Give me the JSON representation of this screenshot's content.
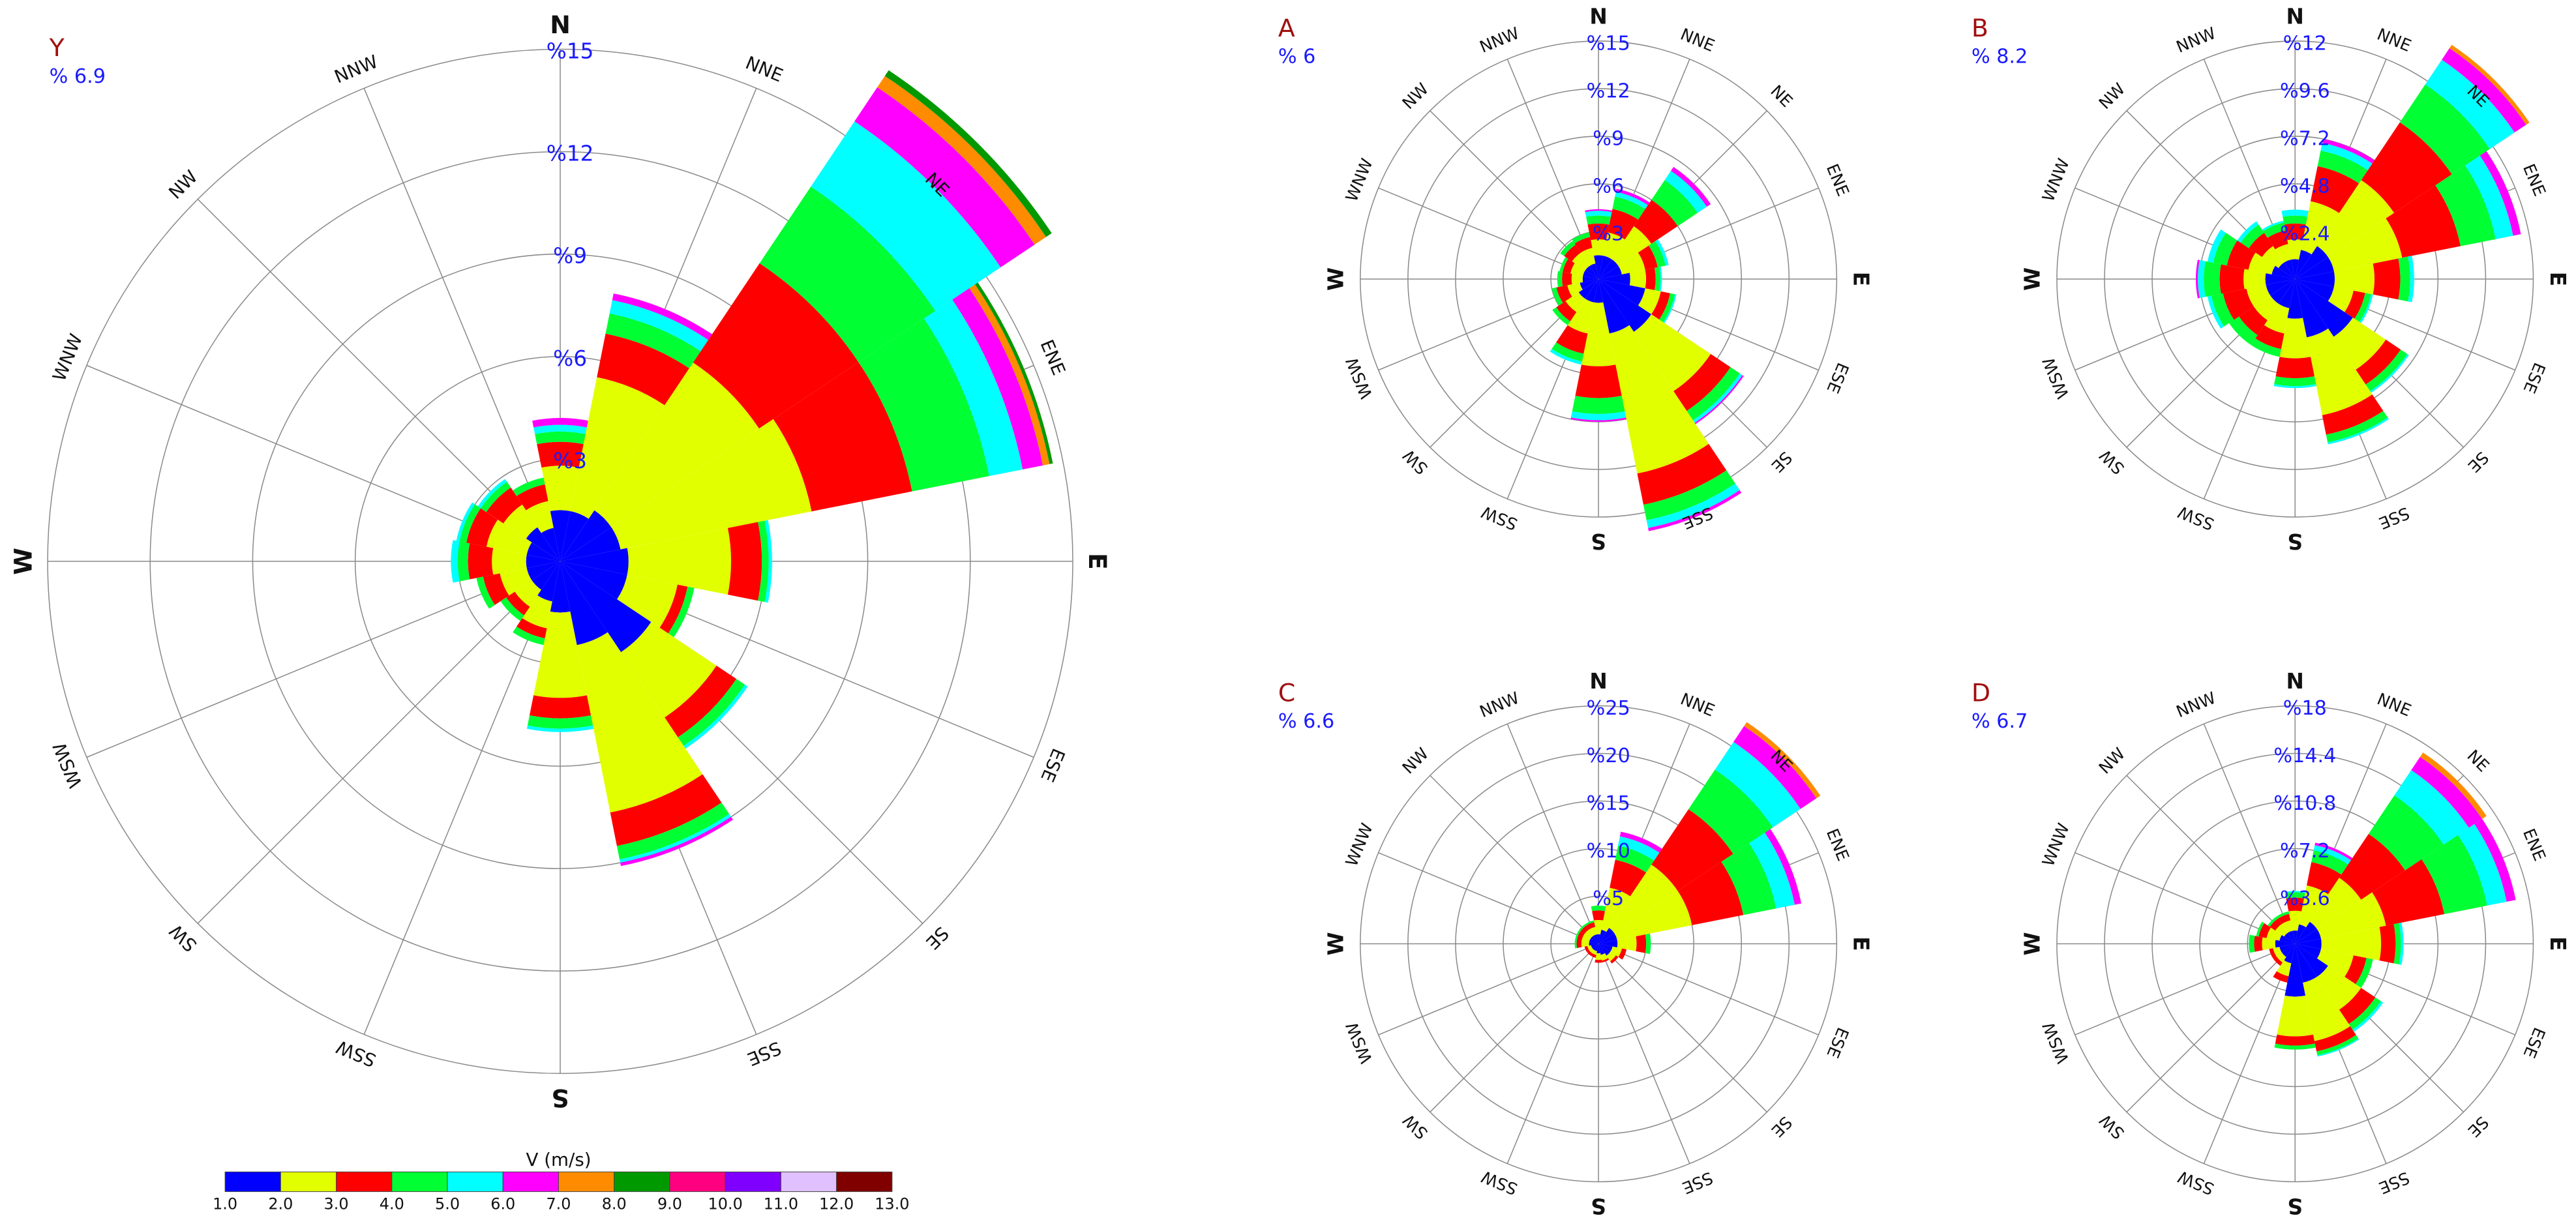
{
  "legend": {
    "title": "V (m/s)",
    "labels": [
      "1.0",
      "2.0",
      "3.0",
      "4.0",
      "5.0",
      "6.0",
      "7.0",
      "8.0",
      "9.0",
      "10.0",
      "11.0",
      "12.0",
      "13.0"
    ],
    "colors": [
      "#0000ff",
      "#e2ff00",
      "#ff0000",
      "#00ff33",
      "#00ffff",
      "#ff00ff",
      "#ff8c00",
      "#009900",
      "#ff0080",
      "#8000ff",
      "#e0c0ff",
      "#800000"
    ]
  },
  "chart_data": [
    {
      "type": "windrose",
      "title": "Y",
      "calm": "% 6.9",
      "categories": [
        "N",
        "NNE",
        "NE",
        "ENE",
        "E",
        "ESE",
        "SE",
        "SSE",
        "S",
        "SSW",
        "SW",
        "WSW",
        "W",
        "WNW",
        "NW",
        "NNW"
      ],
      "rlim": [
        0,
        15
      ],
      "rticks": [
        {
          "value": 3,
          "label": "%3"
        },
        {
          "value": 6,
          "label": "%6"
        },
        {
          "value": 9,
          "label": "%9"
        },
        {
          "value": 12,
          "label": "%12"
        },
        {
          "value": 15,
          "label": "%15"
        }
      ],
      "series": [
        {
          "color": "#0000ff",
          "values": [
            1.5,
            1.5,
            1.8,
            1.8,
            2.0,
            2.0,
            3.2,
            2.5,
            1.5,
            1.2,
            1.0,
            1.0,
            1.0,
            1.0,
            1.2,
            1.0
          ]
        },
        {
          "color": "#e2ff00",
          "values": [
            1.3,
            4.0,
            5.2,
            5.7,
            3.0,
            1.5,
            2.3,
            5.0,
            2.5,
            0.8,
            0.6,
            0.8,
            1.0,
            1.2,
            0.8,
            0.8
          ]
        },
        {
          "color": "#ff0000",
          "values": [
            0.7,
            1.3,
            3.5,
            3.0,
            0.9,
            0.3,
            0.7,
            1.0,
            0.6,
            0.3,
            0.3,
            0.5,
            0.7,
            0.6,
            0.6,
            0.5
          ]
        },
        {
          "color": "#00ff33",
          "values": [
            0.3,
            0.6,
            2.7,
            2.3,
            0.2,
            0.2,
            0.3,
            0.4,
            0.3,
            0.2,
            0.2,
            0.2,
            0.3,
            0.2,
            0.2,
            0.2
          ]
        },
        {
          "color": "#00ffff",
          "values": [
            0.2,
            0.4,
            2.3,
            1.0,
            0.1,
            0,
            0.1,
            0.1,
            0.1,
            0,
            0,
            0,
            0.2,
            0.1,
            0.1,
            0
          ]
        },
        {
          "color": "#ff00ff",
          "values": [
            0.2,
            0.2,
            1.2,
            0.6,
            0,
            0,
            0,
            0.1,
            0,
            0,
            0,
            0,
            0,
            0,
            0,
            0
          ]
        },
        {
          "color": "#ff8c00",
          "values": [
            0,
            0,
            0.4,
            0.2,
            0,
            0,
            0,
            0,
            0,
            0,
            0,
            0,
            0,
            0,
            0,
            0
          ]
        },
        {
          "color": "#009900",
          "values": [
            0,
            0,
            0.2,
            0.1,
            0,
            0,
            0,
            0,
            0,
            0,
            0,
            0,
            0,
            0,
            0,
            0
          ]
        }
      ]
    },
    {
      "type": "windrose",
      "title": "A",
      "calm": "% 6",
      "categories": [
        "N",
        "NNE",
        "NE",
        "ENE",
        "E",
        "ESE",
        "SE",
        "SSE",
        "S",
        "SSW",
        "SW",
        "WSW",
        "W",
        "WNW",
        "NW",
        "NNW"
      ],
      "rlim": [
        0,
        15
      ],
      "rticks": [
        {
          "value": 3,
          "label": "%3"
        },
        {
          "value": 6,
          "label": "%6"
        },
        {
          "value": 9,
          "label": "%9"
        },
        {
          "value": 12,
          "label": "%12"
        },
        {
          "value": 15,
          "label": "%15"
        }
      ],
      "series": [
        {
          "color": "#0000ff",
          "values": [
            1.5,
            1.5,
            1.5,
            1.5,
            2.0,
            3.0,
            4.0,
            3.5,
            1.5,
            1.5,
            1.5,
            1.2,
            1.0,
            1.0,
            1.0,
            1.0
          ]
        },
        {
          "color": "#e2ff00",
          "values": [
            1.0,
            1.5,
            2.5,
            1.5,
            1.0,
            1.0,
            4.5,
            9.0,
            4.0,
            2.0,
            1.0,
            0.8,
            0.7,
            0.8,
            1.0,
            1.0
          ]
        },
        {
          "color": "#ff0000",
          "values": [
            1.0,
            1.5,
            2.0,
            0.8,
            0.6,
            0.6,
            1.5,
            2.0,
            2.0,
            1.3,
            0.7,
            0.7,
            0.6,
            0.5,
            0.6,
            0.7
          ]
        },
        {
          "color": "#00ff33",
          "values": [
            0.5,
            0.8,
            1.5,
            0.5,
            0.3,
            0.3,
            0.7,
            1.0,
            1.0,
            0.5,
            0.3,
            0.3,
            0.3,
            0.2,
            0.3,
            0.3
          ]
        },
        {
          "color": "#00ffff",
          "values": [
            0.3,
            0.3,
            0.7,
            0.2,
            0.1,
            0.1,
            0.2,
            0.5,
            0.4,
            0.2,
            0,
            0,
            0,
            0,
            0,
            0
          ]
        },
        {
          "color": "#ff00ff",
          "values": [
            0.1,
            0.2,
            0.3,
            0,
            0,
            0,
            0.1,
            0.2,
            0.1,
            0,
            0,
            0,
            0,
            0,
            0,
            0
          ]
        }
      ]
    },
    {
      "type": "windrose",
      "title": "B",
      "calm": "% 8.2",
      "categories": [
        "N",
        "NNE",
        "NE",
        "ENE",
        "E",
        "ESE",
        "SE",
        "SSE",
        "S",
        "SSW",
        "SW",
        "WSW",
        "W",
        "WNW",
        "NW",
        "NNW"
      ],
      "rlim": [
        0,
        12
      ],
      "rticks": [
        {
          "value": 2.4,
          "label": "%2.4"
        },
        {
          "value": 4.8,
          "label": "%4.8"
        },
        {
          "value": 7.2,
          "label": "%7.2"
        },
        {
          "value": 9.6,
          "label": "%9.6"
        },
        {
          "value": 12,
          "label": "%12"
        }
      ],
      "series": [
        {
          "color": "#0000ff",
          "values": [
            1.0,
            1.5,
            2.0,
            2.0,
            2.0,
            2.0,
            3.5,
            3.0,
            2.0,
            1.5,
            1.5,
            1.5,
            1.5,
            1.2,
            1.0,
            1.0
          ]
        },
        {
          "color": "#e2ff00",
          "values": [
            1.0,
            2.5,
            4.0,
            3.5,
            2.0,
            1.0,
            2.0,
            4.0,
            2.0,
            1.3,
            1.0,
            1.0,
            1.1,
            1.2,
            1.0,
            0.8
          ]
        },
        {
          "color": "#ff0000",
          "values": [
            0.8,
            1.8,
            3.5,
            3.0,
            1.3,
            0.6,
            0.9,
            1.0,
            1.0,
            0.8,
            0.9,
            1.2,
            1.2,
            1.1,
            0.8,
            0.7
          ]
        },
        {
          "color": "#00ff33",
          "values": [
            0.4,
            0.8,
            2.3,
            1.8,
            0.5,
            0.3,
            0.4,
            0.4,
            0.4,
            0.4,
            0.6,
            0.6,
            0.8,
            0.7,
            0.5,
            0.4
          ]
        },
        {
          "color": "#00ffff",
          "values": [
            0.3,
            0.4,
            1.5,
            0.9,
            0.2,
            0.1,
            0.1,
            0.1,
            0.1,
            0,
            0,
            0.2,
            0.3,
            0.3,
            0.2,
            0.1
          ]
        },
        {
          "color": "#ff00ff",
          "values": [
            0,
            0.2,
            0.7,
            0.4,
            0,
            0,
            0,
            0,
            0,
            0,
            0,
            0,
            0.1,
            0,
            0,
            0
          ]
        },
        {
          "color": "#ff8c00",
          "values": [
            0,
            0,
            0.2,
            0,
            0,
            0,
            0,
            0,
            0,
            0,
            0,
            0,
            0,
            0,
            0,
            0
          ]
        }
      ]
    },
    {
      "type": "windrose",
      "title": "C",
      "calm": "% 6.6",
      "categories": [
        "N",
        "NNE",
        "NE",
        "ENE",
        "E",
        "ESE",
        "SE",
        "SSE",
        "S",
        "SSW",
        "SW",
        "WSW",
        "W",
        "WNW",
        "NW",
        "NNW"
      ],
      "rlim": [
        0,
        25
      ],
      "rticks": [
        {
          "value": 5,
          "label": "%5"
        },
        {
          "value": 10,
          "label": "%10"
        },
        {
          "value": 15,
          "label": "%15"
        },
        {
          "value": 20,
          "label": "%20"
        },
        {
          "value": 25,
          "label": "%25"
        }
      ],
      "series": [
        {
          "color": "#0000ff",
          "values": [
            1.0,
            1.5,
            2.0,
            2.0,
            2.0,
            1.5,
            1.5,
            1.2,
            1.0,
            0.8,
            0.8,
            0.8,
            1.0,
            1.0,
            1.0,
            1.0
          ]
        },
        {
          "color": "#e2ff00",
          "values": [
            1.5,
            4.5,
            8.0,
            8.0,
            2.0,
            1.0,
            0.7,
            0.6,
            0.7,
            0.4,
            0.4,
            0.4,
            0.8,
            0.8,
            0.8,
            0.8
          ]
        },
        {
          "color": "#ff0000",
          "values": [
            1.0,
            3.0,
            7.0,
            5.5,
            1.0,
            0.5,
            0.3,
            0.2,
            0.3,
            0.3,
            0.3,
            0.3,
            0.5,
            0.5,
            0.5,
            0.5
          ]
        },
        {
          "color": "#00ff33",
          "values": [
            0.5,
            1.5,
            5.0,
            3.5,
            0.5,
            0,
            0,
            0,
            0,
            0,
            0,
            0,
            0.2,
            0.2,
            0.2,
            0.2
          ]
        },
        {
          "color": "#00ffff",
          "values": [
            0,
            1.0,
            3.5,
            2.0,
            0,
            0,
            0,
            0,
            0,
            0,
            0,
            0,
            0,
            0,
            0,
            0
          ]
        },
        {
          "color": "#ff00ff",
          "values": [
            0,
            0.5,
            2.0,
            0.7,
            0,
            0,
            0,
            0,
            0,
            0,
            0,
            0,
            0,
            0,
            0,
            0
          ]
        },
        {
          "color": "#ff8c00",
          "values": [
            0,
            0,
            0.5,
            0,
            0,
            0,
            0,
            0,
            0,
            0,
            0,
            0,
            0,
            0,
            0,
            0
          ]
        }
      ]
    },
    {
      "type": "windrose",
      "title": "D",
      "calm": "% 6.7",
      "categories": [
        "N",
        "NNE",
        "NE",
        "ENE",
        "E",
        "ESE",
        "SE",
        "SSE",
        "S",
        "SSW",
        "SW",
        "WSW",
        "W",
        "WNW",
        "NW",
        "NNW"
      ],
      "rlim": [
        0,
        18
      ],
      "rticks": [
        {
          "value": 3.6,
          "label": "%3.6"
        },
        {
          "value": 7.2,
          "label": "%7.2"
        },
        {
          "value": 10.8,
          "label": "%10.8"
        },
        {
          "value": 14.4,
          "label": "%14.4"
        },
        {
          "value": 18,
          "label": "%18"
        }
      ],
      "series": [
        {
          "color": "#0000ff",
          "values": [
            1.0,
            1.5,
            2.0,
            2.0,
            2.0,
            2.0,
            3.0,
            3.0,
            4.0,
            1.5,
            1.2,
            1.2,
            1.5,
            1.2,
            1.0,
            1.0
          ]
        },
        {
          "color": "#e2ff00",
          "values": [
            1.5,
            3.0,
            4.0,
            5.0,
            4.5,
            2.5,
            3.0,
            4.5,
            3.0,
            1.0,
            0.5,
            0.5,
            1.0,
            1.0,
            0.8,
            0.8
          ]
        },
        {
          "color": "#ff0000",
          "values": [
            1.0,
            1.8,
            4.0,
            4.5,
            1.1,
            1.0,
            1.3,
            0.8,
            0.7,
            0.5,
            0.3,
            0.3,
            0.6,
            0.6,
            0.5,
            0.5
          ]
        },
        {
          "color": "#00ff33",
          "values": [
            0.4,
            0.9,
            3.5,
            3.3,
            0.4,
            0.5,
            0.5,
            0.3,
            0.3,
            0,
            0,
            0,
            0.4,
            0.2,
            0.2,
            0.2
          ]
        },
        {
          "color": "#00ffff",
          "values": [
            0.1,
            0.4,
            2.3,
            1.5,
            0.2,
            0,
            0.2,
            0.1,
            0,
            0,
            0,
            0,
            0,
            0,
            0,
            0
          ]
        },
        {
          "color": "#ff00ff",
          "values": [
            0,
            0.2,
            1.2,
            0.7,
            0,
            0,
            0,
            0,
            0,
            0,
            0,
            0,
            0,
            0,
            0,
            0
          ]
        },
        {
          "color": "#ff8c00",
          "values": [
            0,
            0,
            0.4,
            0,
            0,
            0,
            0,
            0,
            0,
            0,
            0,
            0,
            0,
            0,
            0,
            0
          ]
        }
      ]
    }
  ]
}
